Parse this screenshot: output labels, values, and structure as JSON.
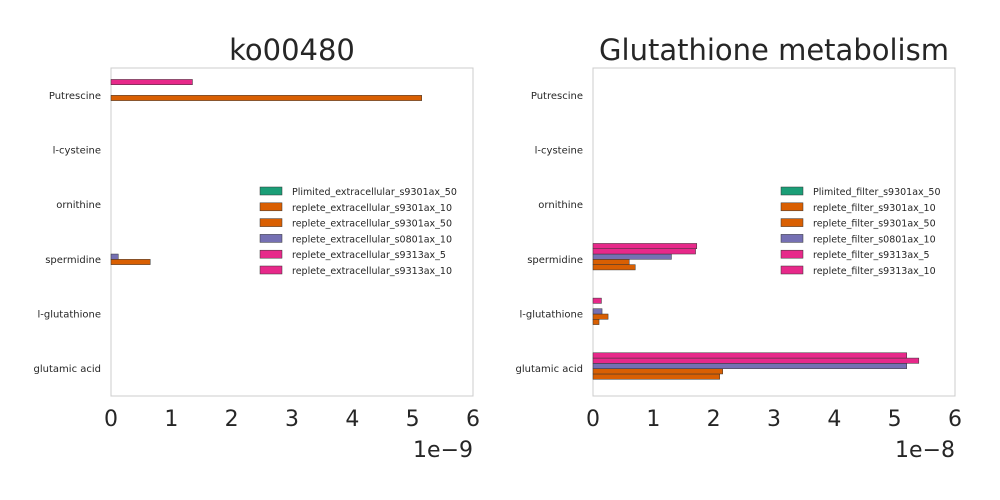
{
  "chart_data": [
    {
      "type": "bar",
      "orientation": "horizontal",
      "title": "ko00480",
      "categories": [
        "Putrescine",
        "l-cysteine",
        "ornithine",
        "spermidine",
        "l-glutathione",
        "glutamic acid"
      ],
      "x_ticks": [
        "0",
        "1",
        "2",
        "3",
        "4",
        "5",
        "6"
      ],
      "x_offset_label": "1e−9",
      "xlim": [
        0,
        6
      ],
      "xscale": 1e-09,
      "grid": false,
      "legend_position": "center-right",
      "series": [
        {
          "name": "Plimited_extracellular_s9301ax_50",
          "color": "#1b9e77",
          "values": [
            0,
            0,
            0,
            0,
            0,
            0
          ]
        },
        {
          "name": "replete_extracellular_s9301ax_10",
          "color": "#d95f02",
          "values": [
            0,
            0,
            0,
            0,
            0,
            0
          ]
        },
        {
          "name": "replete_extracellular_s9301ax_50",
          "color": "#d95f02",
          "values": [
            5.15e-09,
            0,
            0,
            6.5e-10,
            0,
            0
          ]
        },
        {
          "name": "replete_extracellular_s0801ax_10",
          "color": "#7570b3",
          "values": [
            0,
            0,
            0,
            1.2e-10,
            0,
            0
          ]
        },
        {
          "name": "replete_extracellular_s9313ax_5",
          "color": "#e7298a",
          "values": [
            0,
            0,
            0,
            0,
            0,
            0
          ]
        },
        {
          "name": "replete_extracellular_s9313ax_10",
          "color": "#e7298a",
          "values": [
            1.35e-09,
            0,
            0,
            0,
            0,
            0
          ]
        }
      ]
    },
    {
      "type": "bar",
      "orientation": "horizontal",
      "title": "Glutathione metabolism",
      "categories": [
        "Putrescine",
        "l-cysteine",
        "ornithine",
        "spermidine",
        "l-glutathione",
        "glutamic acid"
      ],
      "x_ticks": [
        "0",
        "1",
        "2",
        "3",
        "4",
        "5",
        "6"
      ],
      "x_offset_label": "1e−8",
      "xlim": [
        0,
        6
      ],
      "xscale": 1e-08,
      "grid": false,
      "legend_position": "center-right",
      "series": [
        {
          "name": "Plimited_filter_s9301ax_50",
          "color": "#1b9e77",
          "values": [
            0,
            0,
            0,
            0,
            0,
            0
          ]
        },
        {
          "name": "replete_filter_s9301ax_10",
          "color": "#d95f02",
          "values": [
            0,
            0,
            0,
            7e-09,
            1e-09,
            2.1e-08
          ]
        },
        {
          "name": "replete_filter_s9301ax_50",
          "color": "#d95f02",
          "values": [
            0,
            0,
            0,
            6e-09,
            2.5e-09,
            2.15e-08
          ]
        },
        {
          "name": "replete_filter_s0801ax_10",
          "color": "#7570b3",
          "values": [
            0,
            0,
            0,
            1.3e-08,
            1.5e-09,
            5.2e-08
          ]
        },
        {
          "name": "replete_filter_s9313ax_5",
          "color": "#e7298a",
          "values": [
            0,
            0,
            0,
            1.7e-08,
            0,
            5.4e-08
          ]
        },
        {
          "name": "replete_filter_s9313ax_10",
          "color": "#e7298a",
          "values": [
            0,
            0,
            0,
            1.72e-08,
            1.4e-09,
            5.2e-08
          ]
        }
      ]
    }
  ]
}
